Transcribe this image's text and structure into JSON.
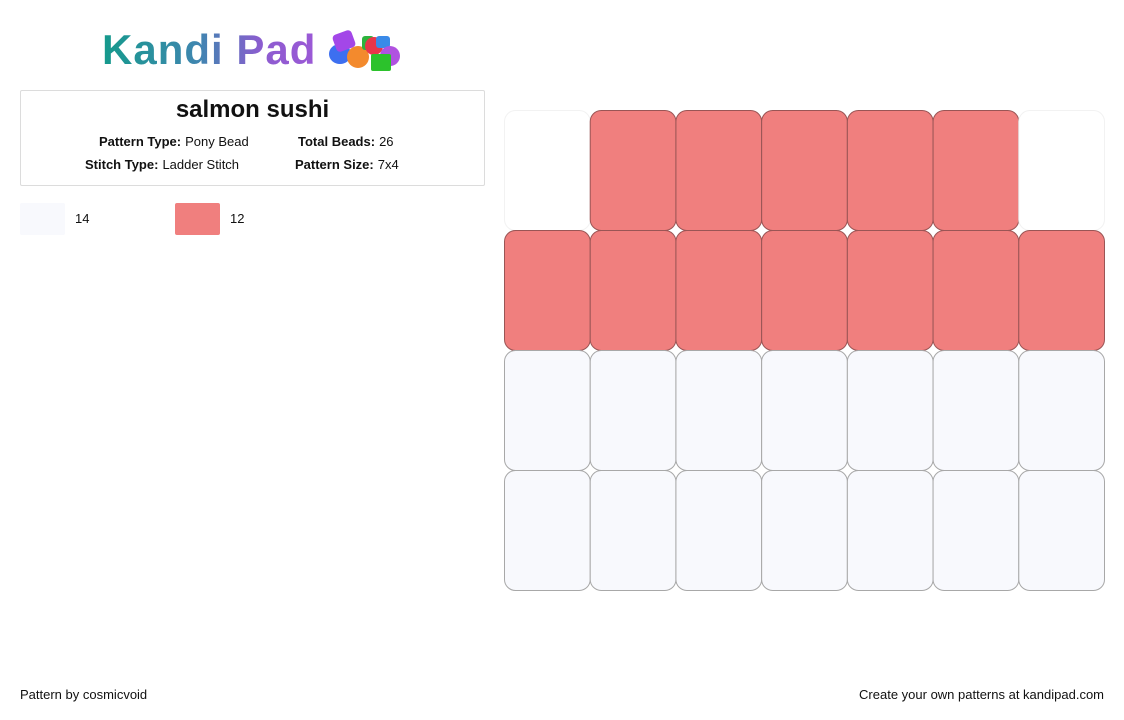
{
  "header": {
    "logo": "Kandi Pad"
  },
  "pattern": {
    "title": "salmon sushi",
    "info": [
      {
        "label": "Pattern Type:",
        "value": "Pony Bead"
      },
      {
        "label": "Total Beads:",
        "value": "26"
      },
      {
        "label": "Stitch Type:",
        "value": "Ladder Stitch"
      },
      {
        "label": "Pattern Size:",
        "value": "7x4"
      }
    ],
    "palette": [
      {
        "color": "#f8f9fd",
        "count": 14
      },
      {
        "color": "#f07f7e",
        "count": 12
      }
    ],
    "grid": [
      [
        null,
        1,
        1,
        1,
        1,
        1,
        null
      ],
      [
        1,
        1,
        1,
        1,
        1,
        1,
        1
      ],
      [
        0,
        0,
        0,
        0,
        0,
        0,
        0
      ],
      [
        0,
        0,
        0,
        0,
        0,
        0,
        0
      ]
    ]
  },
  "footer": {
    "author": "Pattern by cosmicvoid",
    "promo": "Create your own patterns at kandipad.com"
  }
}
